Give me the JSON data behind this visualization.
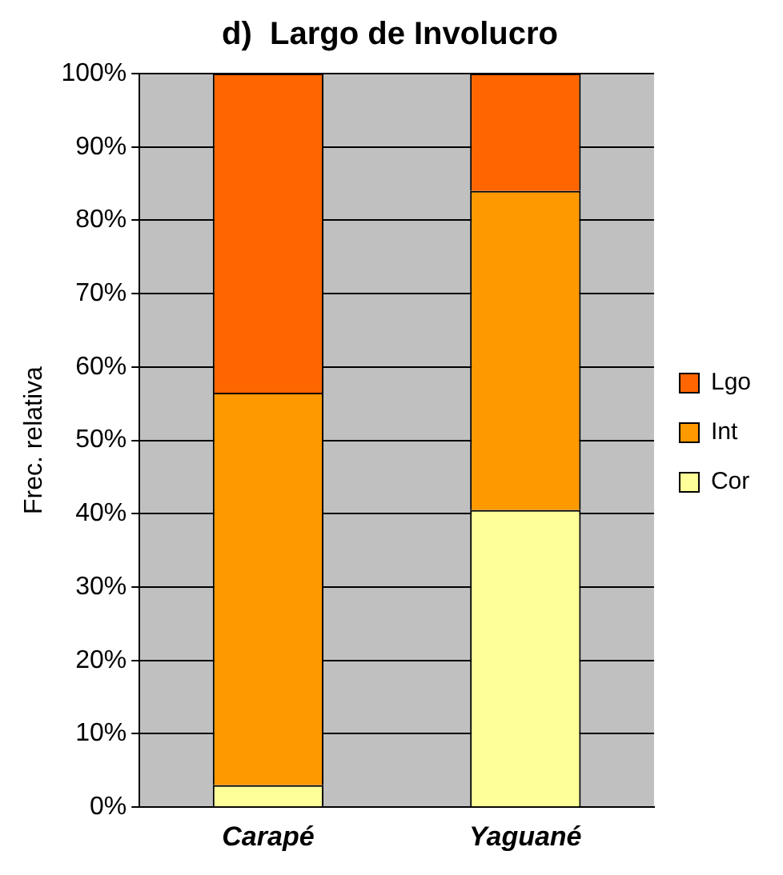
{
  "chart_data": {
    "type": "bar",
    "title": "d)  Largo de Involucro",
    "ylabel": "Frec. relativa",
    "categories": [
      "Carapé",
      "Yaguané"
    ],
    "stacked": true,
    "series": [
      {
        "name": "Cor",
        "color": "#ffff99",
        "values": [
          3,
          40.5
        ]
      },
      {
        "name": "Int",
        "color": "#ff9900",
        "values": [
          53.5,
          43.5
        ]
      },
      {
        "name": "Lgo",
        "color": "#ff6600",
        "values": [
          43.5,
          16
        ]
      }
    ],
    "ylim": [
      0,
      100
    ],
    "yticks": [
      {
        "value": 0,
        "label": "0%"
      },
      {
        "value": 10,
        "label": "10%"
      },
      {
        "value": 20,
        "label": "20%"
      },
      {
        "value": 30,
        "label": "30%"
      },
      {
        "value": 40,
        "label": "40%"
      },
      {
        "value": 50,
        "label": "50%"
      },
      {
        "value": 60,
        "label": "60%"
      },
      {
        "value": 70,
        "label": "70%"
      },
      {
        "value": 80,
        "label": "80%"
      },
      {
        "value": 90,
        "label": "90%"
      },
      {
        "value": 100,
        "label": "100%"
      }
    ],
    "grid": "y",
    "legend": "right"
  }
}
